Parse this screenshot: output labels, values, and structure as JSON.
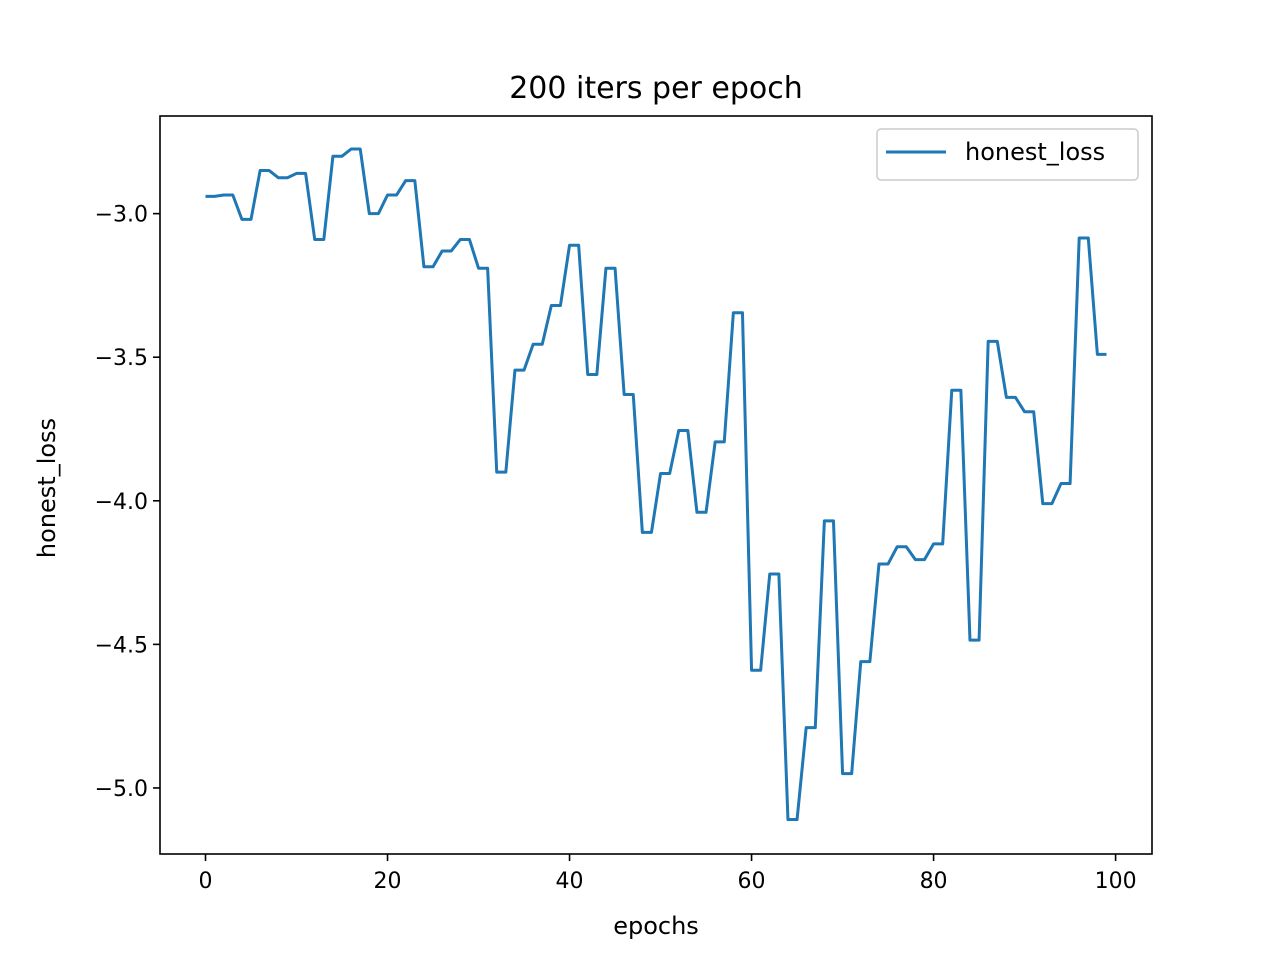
{
  "chart_data": {
    "type": "line",
    "title": "200 iters per epoch",
    "xlabel": "epochs",
    "ylabel": "honest_loss",
    "xlim": [
      -5,
      104
    ],
    "ylim": [
      -5.23,
      -2.66
    ],
    "xticks": [
      0,
      20,
      40,
      60,
      80,
      100
    ],
    "yticks": [
      -3.0,
      -3.5,
      -4.0,
      -4.5,
      -5.0
    ],
    "xtick_labels": [
      "0",
      "20",
      "40",
      "60",
      "80",
      "100"
    ],
    "ytick_labels": [
      "−3.0",
      "−3.5",
      "−4.0",
      "−4.5",
      "−5.0"
    ],
    "grid": false,
    "legend_position": "top-right",
    "series": [
      {
        "name": "honest_loss",
        "color": "#1f77b4",
        "x": [
          0,
          1,
          2,
          3,
          4,
          5,
          6,
          7,
          8,
          9,
          10,
          11,
          12,
          13,
          14,
          15,
          16,
          17,
          18,
          19,
          20,
          21,
          22,
          23,
          24,
          25,
          26,
          27,
          28,
          29,
          30,
          31,
          32,
          33,
          34,
          35,
          36,
          37,
          38,
          39,
          40,
          41,
          42,
          43,
          44,
          45,
          46,
          47,
          48,
          49,
          50,
          51,
          52,
          53,
          54,
          55,
          56,
          57,
          58,
          59,
          60,
          61,
          62,
          63,
          64,
          65,
          66,
          67,
          68,
          69,
          70,
          71,
          72,
          73,
          74,
          75,
          76,
          77,
          78,
          79,
          80,
          81,
          82,
          83,
          84,
          85,
          86,
          87,
          88,
          89,
          90,
          91,
          92,
          93,
          94,
          95,
          96,
          97,
          98,
          99
        ],
        "y": [
          -2.94,
          -2.94,
          -2.935,
          -2.935,
          -3.02,
          -3.02,
          -2.85,
          -2.85,
          -2.875,
          -2.875,
          -2.86,
          -2.86,
          -3.09,
          -3.09,
          -2.8,
          -2.8,
          -2.775,
          -2.775,
          -3.0,
          -3.0,
          -2.935,
          -2.935,
          -2.885,
          -2.885,
          -3.185,
          -3.185,
          -3.13,
          -3.13,
          -3.09,
          -3.09,
          -3.19,
          -3.19,
          -3.9,
          -3.9,
          -3.545,
          -3.545,
          -3.455,
          -3.455,
          -3.32,
          -3.32,
          -3.11,
          -3.11,
          -3.56,
          -3.56,
          -3.19,
          -3.19,
          -3.63,
          -3.63,
          -4.11,
          -4.11,
          -3.905,
          -3.905,
          -3.755,
          -3.755,
          -4.04,
          -4.04,
          -3.795,
          -3.795,
          -3.345,
          -3.345,
          -4.59,
          -4.59,
          -4.255,
          -4.255,
          -5.11,
          -5.11,
          -4.79,
          -4.79,
          -4.07,
          -4.07,
          -4.95,
          -4.95,
          -4.56,
          -4.56,
          -4.22,
          -4.22,
          -4.16,
          -4.16,
          -4.205,
          -4.205,
          -4.15,
          -4.15,
          -3.615,
          -3.615,
          -4.485,
          -4.485,
          -3.445,
          -3.445,
          -3.64,
          -3.64,
          -3.69,
          -3.69,
          -4.01,
          -4.01,
          -3.94,
          -3.94,
          -3.085,
          -3.085,
          -3.49,
          -3.49
        ]
      }
    ]
  }
}
